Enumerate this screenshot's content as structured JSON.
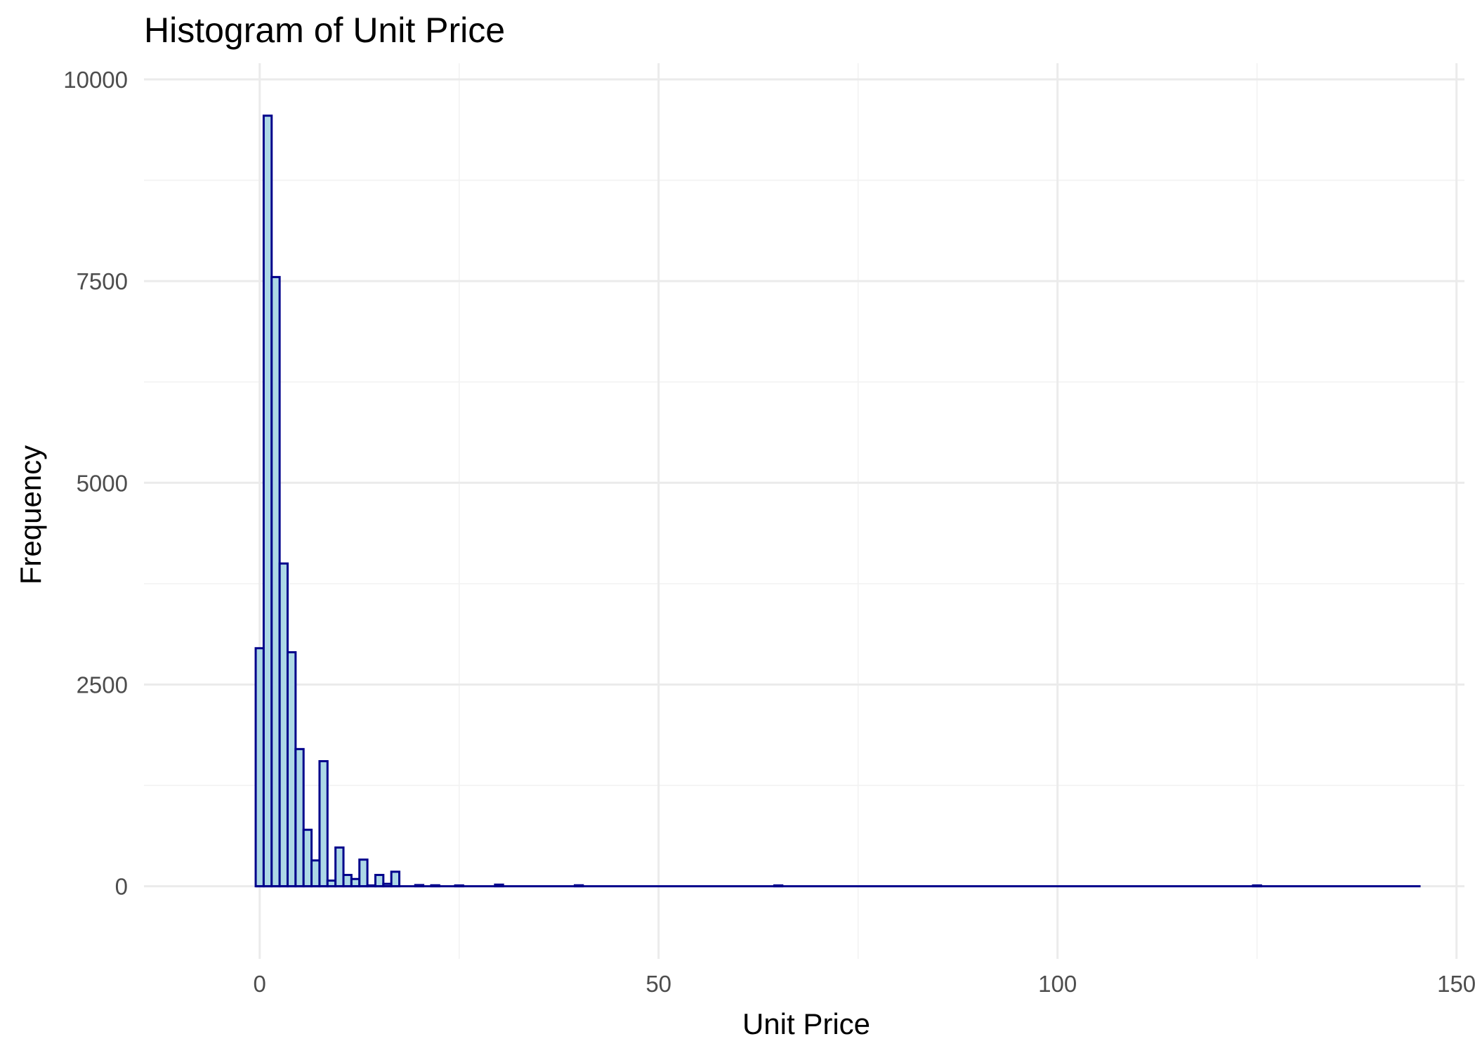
{
  "chart_data": {
    "type": "bar",
    "title": "Histogram of Unit Price",
    "xlabel": "Unit Price",
    "ylabel": "Frequency",
    "xlim": [
      -14.5,
      151
    ],
    "ylim": [
      -900,
      10200
    ],
    "x_ticks": [
      0,
      50,
      100,
      150
    ],
    "y_ticks": [
      0,
      2500,
      5000,
      7500,
      10000
    ],
    "grid": true,
    "bin_width": 1,
    "series": [
      {
        "bins": [
          {
            "x0": -0.5,
            "x1": 0.5,
            "count": 2950
          },
          {
            "x0": 0.5,
            "x1": 1.5,
            "count": 9550
          },
          {
            "x0": 1.5,
            "x1": 2.5,
            "count": 7550
          },
          {
            "x0": 2.5,
            "x1": 3.5,
            "count": 4000
          },
          {
            "x0": 3.5,
            "x1": 4.5,
            "count": 2900
          },
          {
            "x0": 4.5,
            "x1": 5.5,
            "count": 1700
          },
          {
            "x0": 5.5,
            "x1": 6.5,
            "count": 700
          },
          {
            "x0": 6.5,
            "x1": 7.5,
            "count": 320
          },
          {
            "x0": 7.5,
            "x1": 8.5,
            "count": 1550
          },
          {
            "x0": 8.5,
            "x1": 9.5,
            "count": 70
          },
          {
            "x0": 9.5,
            "x1": 10.5,
            "count": 480
          },
          {
            "x0": 10.5,
            "x1": 11.5,
            "count": 140
          },
          {
            "x0": 11.5,
            "x1": 12.5,
            "count": 90
          },
          {
            "x0": 12.5,
            "x1": 13.5,
            "count": 330
          },
          {
            "x0": 13.5,
            "x1": 14.5,
            "count": 10
          },
          {
            "x0": 14.5,
            "x1": 15.5,
            "count": 140
          },
          {
            "x0": 15.5,
            "x1": 16.5,
            "count": 30
          },
          {
            "x0": 16.5,
            "x1": 17.5,
            "count": 180
          },
          {
            "x0": 19.5,
            "x1": 20.5,
            "count": 15
          },
          {
            "x0": 21.5,
            "x1": 22.5,
            "count": 12
          },
          {
            "x0": 24.5,
            "x1": 25.5,
            "count": 10
          },
          {
            "x0": 29.5,
            "x1": 30.5,
            "count": 20
          },
          {
            "x0": 39.5,
            "x1": 40.5,
            "count": 12
          },
          {
            "x0": 64.5,
            "x1": 65.5,
            "count": 10
          },
          {
            "x0": 124.5,
            "x1": 125.5,
            "count": 10
          }
        ],
        "x_end": 145.5
      }
    ]
  }
}
